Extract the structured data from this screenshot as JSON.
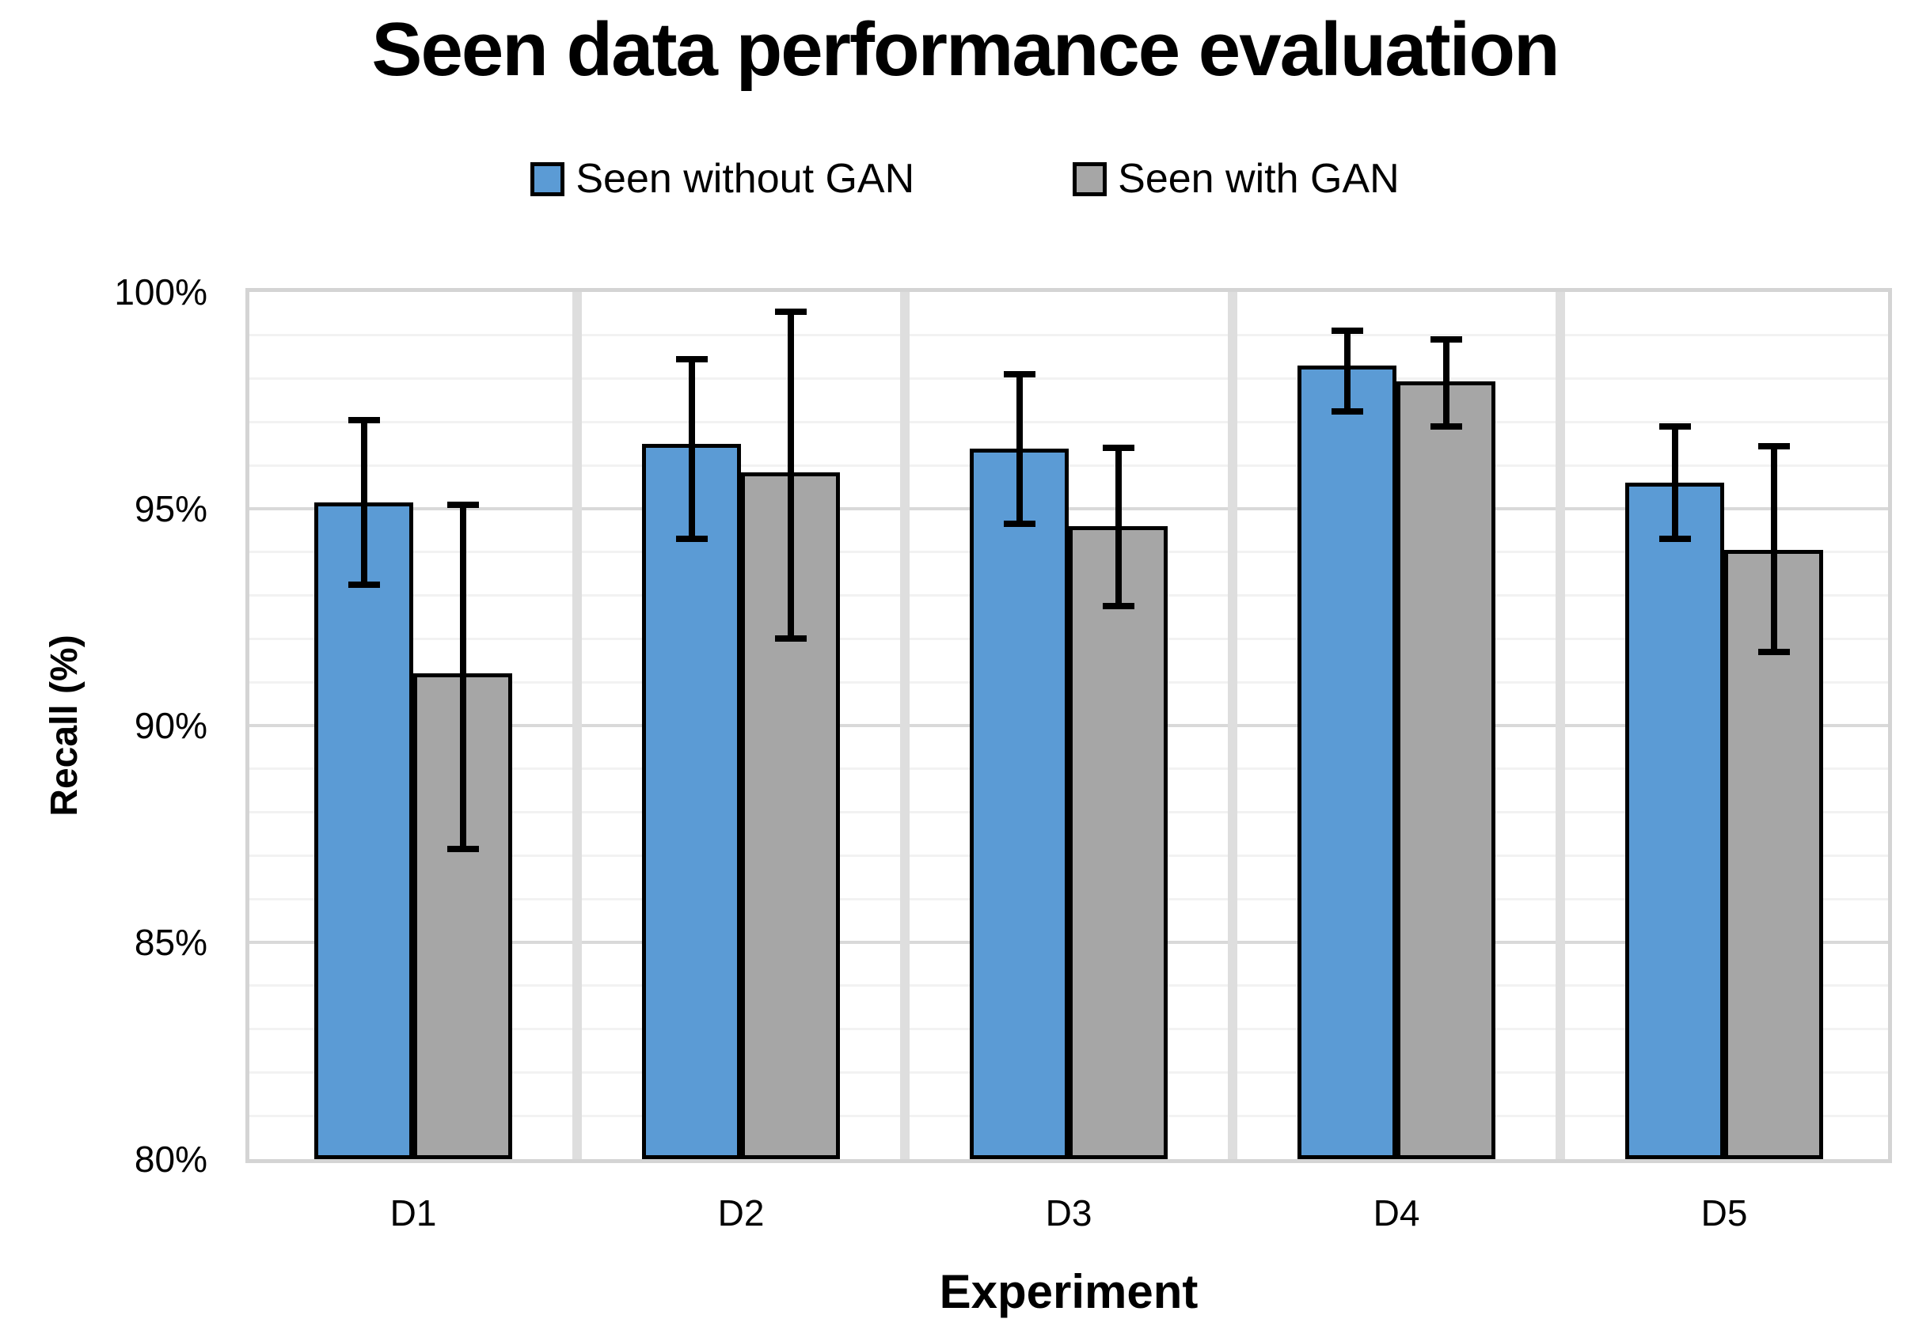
{
  "title": "Seen data performance evaluation",
  "axis_titles": {
    "y": "Recall (%)",
    "x": "Experiment"
  },
  "chart_data": {
    "type": "bar",
    "title": "Seen data performance evaluation",
    "categories": [
      "D1",
      "D2",
      "D3",
      "D4",
      "D5"
    ],
    "series": [
      {
        "name": "Seen without GAN",
        "color": "#5B9BD5",
        "values": [
          95.1,
          96.45,
          96.35,
          98.25,
          95.55
        ],
        "error_upper": [
          97.05,
          98.45,
          98.1,
          99.1,
          96.9
        ],
        "error_lower": [
          93.25,
          94.3,
          94.65,
          97.25,
          94.3
        ]
      },
      {
        "name": "Seen with GAN",
        "color": "#A6A6A6",
        "values": [
          91.15,
          95.8,
          94.55,
          97.9,
          94.0
        ],
        "error_upper": [
          95.1,
          99.55,
          96.4,
          98.9,
          96.45
        ],
        "error_lower": [
          87.15,
          92.0,
          92.75,
          96.9,
          91.7
        ]
      }
    ],
    "xlabel": "Experiment",
    "ylabel": "Recall (%)",
    "ylim": [
      80,
      100
    ],
    "ytick_values": [
      100,
      95,
      90,
      85,
      80
    ],
    "ytick_labels": [
      "100%",
      "95%",
      "90%",
      "85%",
      "80%"
    ],
    "minor_tick_step": 1,
    "major_tick_step": 5,
    "grid": true,
    "legend_position": "top",
    "error_bars": true
  },
  "styles": {
    "bar_border": "#000000",
    "gridline_major": "#d9d9d9",
    "gridline_minor": "#f2f2f2",
    "vertical_gridline": "#dedede",
    "plot_border": "#d4d4d4",
    "text_color": "#000000",
    "background": "#ffffff"
  }
}
